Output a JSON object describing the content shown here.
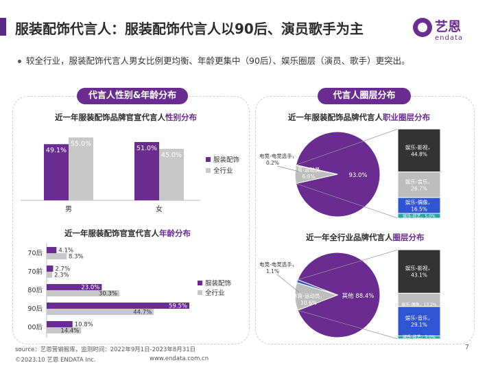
{
  "page": {
    "title": "服装配饰代言人：服装配饰代言人以90后、演员歌手为主",
    "subtitle": "较全行业，服装配饰代言人男女比例更均衡、年龄更集中（90后）、娱乐圈层（演员、歌手）更突出。",
    "logo_cn": "艺恩",
    "logo_en": "endata",
    "page_number": "7",
    "source": "source：艺恩营销智库，监测时间：2022年9月1日-2023年8月31日",
    "copyright": "©2023.10  艺恩  ENDATA Inc.",
    "website": "www.endata.com.cn"
  },
  "sections": {
    "left_pill": "代言人性别&年龄分布",
    "right_pill": "代言人圈层分布"
  },
  "chart_titles": {
    "gender_pre": "近一年服装配饰品牌官宣代言人",
    "gender_hl": "性别分布",
    "age_pre": "近一年服装配饰官宣代言人",
    "age_hl": "年龄分布",
    "circle1_pre": "近一年服装配饰品牌代言人",
    "circle1_hl": "职业圈层分布",
    "circle2_pre": "近一年全行业品牌代言人",
    "circle2_hl": "圈层分布"
  },
  "colors": {
    "purple": "#6a2c91",
    "grey": "#c8c8c8",
    "dark": "#333333",
    "light_grey": "#bdbdbd",
    "blue": "#2f55d4",
    "teal": "#27a5a5"
  },
  "chart_data": [
    {
      "type": "bar",
      "categories": [
        "男",
        "女"
      ],
      "series": [
        {
          "name": "服装配饰",
          "values": [
            49.1,
            51.0
          ],
          "labels": [
            "49.1%",
            "51.0%"
          ]
        },
        {
          "name": "全行业",
          "values": [
            55.0,
            45.0
          ],
          "labels": [
            "55.0%",
            "45.0%"
          ]
        }
      ],
      "ylim": [
        0,
        60
      ],
      "legend": "right"
    },
    {
      "type": "bar",
      "orientation": "horizontal",
      "categories": [
        "70后",
        "70前",
        "80后",
        "90后",
        "00后"
      ],
      "series": [
        {
          "name": "服装配饰",
          "values": [
            4.1,
            2.7,
            23.0,
            59.5,
            10.8
          ],
          "labels": [
            "4.1%",
            "2.7%",
            "23.0%",
            "59.5%",
            "10.8%"
          ]
        },
        {
          "name": "全行业",
          "values": [
            8.3,
            2.3,
            30.3,
            44.7,
            14.4
          ],
          "labels": [
            "8.3%",
            "2.3%",
            "30.3%",
            "44.7%",
            "14.4%"
          ]
        }
      ],
      "xlim": [
        0,
        62
      ],
      "legend": "right"
    },
    {
      "type": "pie",
      "variant": "bar-of-pie",
      "slices": [
        {
          "label": "娱乐",
          "value": 93.0,
          "text": "93.0%"
        },
        {
          "label": "体育-运动员",
          "value": 6.8,
          "text": "6.8%"
        },
        {
          "label": "电竞-电竞选手",
          "value": 0.2,
          "text": "0.2%"
        }
      ],
      "breakdown": [
        {
          "label": "娱乐-影视",
          "value": 44.8,
          "text": "44.8%"
        },
        {
          "label": "娱乐-音乐",
          "value": 26.7,
          "text": "26.7%"
        },
        {
          "label": "娱乐-偶像",
          "value": 16.5,
          "text": "16.5%"
        },
        {
          "label": "娱乐-综艺",
          "value": 5.0,
          "text": "5.0%"
        }
      ]
    },
    {
      "type": "pie",
      "variant": "bar-of-pie",
      "slices": [
        {
          "label": "其他",
          "value": 88.4,
          "text": "88.4%"
        },
        {
          "label": "体育-运动员",
          "value": 10.6,
          "text": "10.6%"
        },
        {
          "label": "电竞-电竞选手",
          "value": 1.1,
          "text": "1.1%"
        }
      ],
      "breakdown": [
        {
          "label": "娱乐-影视",
          "value": 43.1,
          "text": "43.1%"
        },
        {
          "label": "娱乐-偶像",
          "value": 13.2,
          "text": "13.2%"
        },
        {
          "label": "娱乐-音乐",
          "value": 29.1,
          "text": "29.1%"
        },
        {
          "label": "娱乐-综艺",
          "value": 3.0,
          "text": "3.0%"
        }
      ]
    }
  ]
}
